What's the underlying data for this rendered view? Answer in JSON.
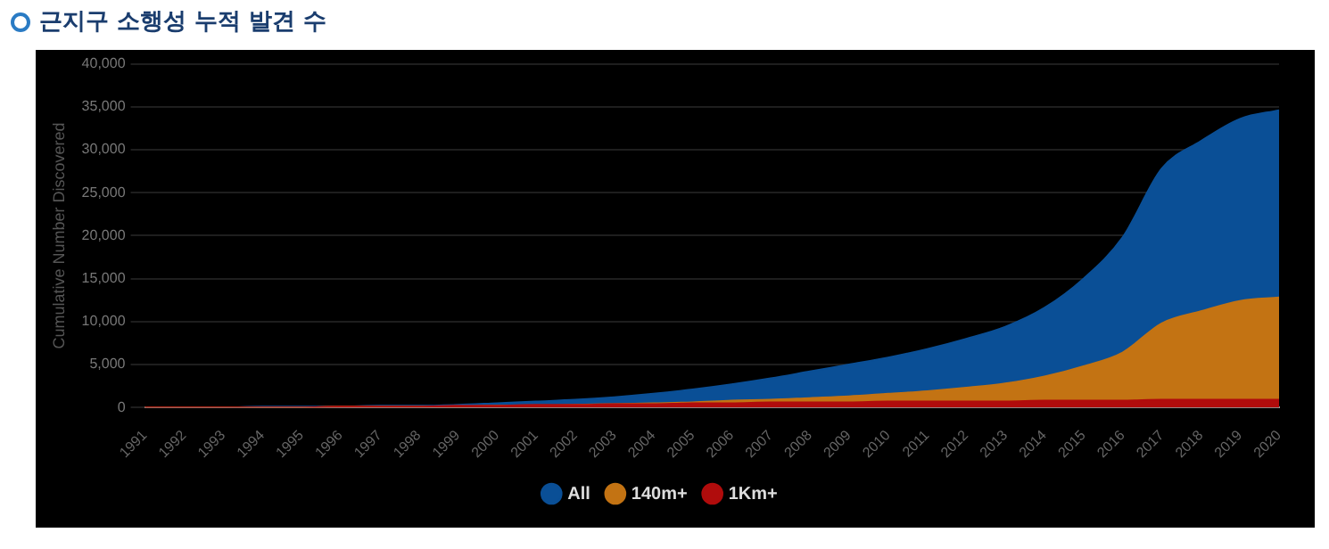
{
  "chart_data": {
    "type": "area",
    "title": "근지구 소행성 누적 발견 수",
    "ylabel": "Cumulative Number Discovered",
    "categories": [
      "1991",
      "1992",
      "1993",
      "1994",
      "1995",
      "1996",
      "1997",
      "1998",
      "1999",
      "2000",
      "2001",
      "2002",
      "2003",
      "2004",
      "2005",
      "2006",
      "2007",
      "2008",
      "2009",
      "2010",
      "2011",
      "2012",
      "2013",
      "2014",
      "2015",
      "2016",
      "2017",
      "2018",
      "2019",
      "2020"
    ],
    "series": [
      {
        "name": "All",
        "color": "#0a4f96",
        "values": [
          0,
          0,
          0,
          100,
          100,
          100,
          200,
          200,
          300,
          500,
          700,
          900,
          1200,
          1600,
          2100,
          2700,
          3400,
          4200,
          5000,
          5800,
          6800,
          8000,
          9400,
          11600,
          15000,
          19800,
          27800,
          31000,
          33600,
          34600
        ]
      },
      {
        "name": "140m+",
        "color": "#c37313",
        "values": [
          0,
          0,
          0,
          0,
          0,
          100,
          100,
          100,
          100,
          200,
          200,
          300,
          400,
          500,
          600,
          800,
          900,
          1100,
          1300,
          1600,
          1900,
          2300,
          2800,
          3600,
          4800,
          6400,
          9800,
          11200,
          12400,
          12800
        ]
      },
      {
        "name": "1Km+",
        "color": "#b00c0c",
        "values": [
          0,
          0,
          0,
          0,
          0,
          100,
          100,
          100,
          200,
          200,
          300,
          300,
          400,
          400,
          500,
          500,
          600,
          600,
          600,
          700,
          700,
          700,
          700,
          800,
          800,
          800,
          900,
          900,
          900,
          900
        ]
      }
    ],
    "ylim": [
      0,
      40000
    ],
    "yticks": [
      0,
      {
        "value": 5000,
        "label": "5,000"
      },
      {
        "value": 10000,
        "label": "10,000"
      },
      {
        "value": 15000,
        "label": "15,000"
      },
      {
        "value": 20000,
        "label": "20,000"
      },
      {
        "value": 25000,
        "label": "25,000"
      },
      {
        "value": 30000,
        "label": "30,000"
      },
      {
        "value": 35000,
        "label": "35,000"
      },
      {
        "value": 40000,
        "label": "40,000"
      }
    ],
    "grid": "y",
    "legend": "bottom",
    "marker": "none"
  }
}
